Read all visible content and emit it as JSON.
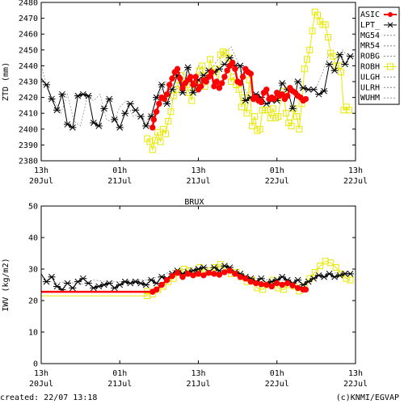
{
  "footer": {
    "created": "created: 22/07 13:18",
    "credit": "(c)KNMI/EGVAP"
  },
  "chart_data": [
    {
      "type": "line",
      "ylabel": "ZTD (mm)",
      "ylim": [
        2380,
        2480
      ],
      "yticks": [
        2380,
        2390,
        2400,
        2410,
        2420,
        2430,
        2440,
        2450,
        2460,
        2470,
        2480
      ],
      "xlim": [
        0,
        48
      ],
      "xticks": [
        {
          "x": 0,
          "line1": "13h",
          "line2": "20Jul"
        },
        {
          "x": 12,
          "line1": "01h",
          "line2": "21Jul"
        },
        {
          "x": 24,
          "line1": "13h",
          "line2": "21Jul"
        },
        {
          "x": 36,
          "line1": "01h",
          "line2": "22Jul"
        },
        {
          "x": 48,
          "line1": "13h",
          "line2": "22Jul"
        }
      ],
      "legend": [
        "ASIC",
        "LPT_",
        "MG54",
        "MR54",
        "ROBG",
        "ROBH",
        "ULGH",
        "ULRH",
        "WUHM"
      ],
      "legend_position": "right",
      "series": [
        {
          "name": "LPT_",
          "x": [
            0,
            0.8,
            1.6,
            2.4,
            3.2,
            4.0,
            4.8,
            5.6,
            6.4,
            7.2,
            8.0,
            8.8,
            9.6,
            10.4,
            11.2,
            12.0,
            12.8,
            13.6,
            14.4,
            15.2,
            16.0,
            16.8,
            17.6,
            18.4,
            19.2,
            20.0,
            20.8,
            21.6,
            22.4,
            23.2,
            24.0,
            24.8,
            25.6,
            26.4,
            27.2,
            28.0,
            28.8,
            29.6,
            30.4,
            31.2,
            32.0,
            32.8,
            33.6,
            34.4,
            35.2,
            36.0,
            36.8,
            37.6,
            38.4,
            39.2,
            40.0,
            40.8,
            41.6,
            42.4,
            43.2,
            44.0,
            44.8,
            45.6,
            46.4,
            47.2
          ],
          "y": [
            2432,
            2428,
            2419,
            2412,
            2422,
            2403,
            2401,
            2421,
            2422,
            2421,
            2404,
            2402,
            2413,
            2419,
            2406,
            2401,
            2410,
            2416,
            2412,
            2408,
            2402,
            2408,
            2420,
            2428,
            2416,
            2425,
            2434,
            2423,
            2439,
            2423,
            2431,
            2434,
            2437,
            2436,
            2438,
            2441,
            2445,
            2440,
            2440,
            2418,
            2420,
            2422,
            2420,
            2416,
            2418,
            2418,
            2429,
            2425,
            2413,
            2430,
            2426,
            2425,
            2425,
            2422,
            2424,
            2441,
            2437,
            2447,
            2441,
            2446
          ]
        },
        {
          "name": "ASIC",
          "x": [
            17.0,
            17.2,
            17.6,
            18.0,
            18.4,
            18.8,
            19.2,
            19.6,
            20.0,
            20.4,
            20.8,
            21.2,
            21.6,
            22.0,
            22.4,
            22.8,
            23.2,
            23.6,
            24.0,
            24.4,
            24.8,
            25.2,
            25.6,
            26.0,
            26.4,
            26.8,
            27.2,
            27.6,
            28.0,
            28.4,
            28.8,
            29.2,
            29.6,
            30.0,
            30.4,
            30.8,
            31.2,
            31.6,
            32.0,
            32.4,
            32.8,
            33.2,
            33.6,
            34.0,
            34.4,
            34.8,
            35.2,
            35.6,
            36.0,
            36.4,
            36.8,
            37.2,
            37.6,
            38.0,
            38.4,
            38.8,
            39.2,
            39.6,
            40.0,
            40.4
          ],
          "y": [
            2401,
            2406,
            2411,
            2416,
            2420,
            2419,
            2422,
            2428,
            2432,
            2436,
            2438,
            2432,
            2426,
            2429,
            2431,
            2433,
            2428,
            2433,
            2425,
            2427,
            2431,
            2430,
            2433,
            2436,
            2427,
            2430,
            2426,
            2429,
            2433,
            2437,
            2440,
            2442,
            2438,
            2430,
            2429,
            2433,
            2438,
            2436,
            2435,
            2419,
            2420,
            2418,
            2417,
            2423,
            2425,
            2419,
            2420,
            2419,
            2423,
            2421,
            2422,
            2419,
            2421,
            2426,
            2424,
            2423,
            2421,
            2420,
            2418,
            2419
          ]
        },
        {
          "name": "ROBH",
          "x": [
            16.2,
            16.6,
            17.0,
            17.4,
            17.8,
            18.2,
            18.6,
            19.0,
            19.4,
            19.8,
            20.2,
            20.6,
            21.0,
            21.4,
            21.8,
            22.2,
            22.6,
            23.0,
            23.4,
            23.8,
            24.2,
            24.6,
            25.0,
            25.4,
            25.8,
            26.2,
            26.6,
            27.0,
            27.4,
            27.8,
            28.2,
            28.6,
            29.0,
            29.4,
            29.8,
            30.2,
            30.6,
            31.0,
            31.4,
            31.8,
            32.2,
            32.6,
            33.0,
            33.4,
            33.8,
            34.2,
            34.6,
            35.0,
            35.4,
            35.8,
            36.2,
            36.6,
            37.0,
            37.4,
            37.8,
            38.2,
            38.6,
            39.0,
            39.4,
            39.8,
            40.2,
            40.6,
            41.0,
            41.4,
            41.8,
            42.2,
            42.6,
            43.0,
            43.4,
            43.8,
            44.2,
            44.6,
            45.0,
            45.4,
            45.8,
            46.2,
            46.6,
            47.0
          ],
          "y": [
            2394,
            2392,
            2387,
            2393,
            2398,
            2392,
            2400,
            2397,
            2405,
            2411,
            2421,
            2425,
            2431,
            2434,
            2429,
            2428,
            2423,
            2418,
            2432,
            2428,
            2437,
            2440,
            2427,
            2434,
            2444,
            2436,
            2438,
            2428,
            2447,
            2449,
            2448,
            2445,
            2430,
            2433,
            2428,
            2425,
            2414,
            2420,
            2410,
            2431,
            2402,
            2408,
            2399,
            2400,
            2412,
            2412,
            2412,
            2407,
            2413,
            2407,
            2408,
            2420,
            2424,
            2410,
            2404,
            2402,
            2413,
            2408,
            2400,
            2416,
            2438,
            2444,
            2450,
            2462,
            2474,
            2472,
            2468,
            2466,
            2466,
            2458,
            2448,
            2446,
            2440,
            2440,
            2436,
            2412,
            2414,
            2412
          ]
        },
        {
          "name": "WUHM",
          "x": [
            0,
            1,
            2,
            3,
            4,
            5,
            6,
            7,
            8,
            9,
            10,
            11,
            12,
            13,
            14,
            15,
            16,
            17,
            18,
            19,
            20,
            21,
            22,
            23,
            24,
            25,
            26,
            27,
            28,
            29,
            30,
            31,
            32,
            33,
            34,
            35,
            36,
            37,
            38,
            39,
            40,
            41,
            42,
            43,
            44,
            45,
            46,
            47
          ],
          "y": [
            2440,
            2425,
            2418,
            2410,
            2422,
            2405,
            2402,
            2420,
            2418,
            2422,
            2406,
            2404,
            2414,
            2418,
            2408,
            2410,
            2404,
            2412,
            2422,
            2430,
            2418,
            2428,
            2438,
            2424,
            2440,
            2430,
            2438,
            2444,
            2448,
            2452,
            2443,
            2426,
            2419,
            2416,
            2424,
            2418,
            2418,
            2430,
            2426,
            2420,
            2428,
            2424,
            2426,
            2436,
            2448,
            2444,
            2450,
            2445
          ]
        }
      ]
    },
    {
      "type": "line",
      "title": "BRUX",
      "ylabel": "IWV (kg/m2)",
      "ylim": [
        0,
        50
      ],
      "yticks": [
        0,
        10,
        20,
        30,
        40,
        50
      ],
      "xlim": [
        0,
        48
      ],
      "xticks": [
        {
          "x": 0,
          "line1": "13h",
          "line2": "20Jul"
        },
        {
          "x": 12,
          "line1": "01h",
          "line2": "21Jul"
        },
        {
          "x": 24,
          "line1": "13h",
          "line2": "21Jul"
        },
        {
          "x": 36,
          "line1": "01h",
          "line2": "22Jul"
        },
        {
          "x": 48,
          "line1": "13h",
          "line2": "22Jul"
        }
      ],
      "series": [
        {
          "name": "ASIC",
          "x": [
            0,
            17.0,
            17.6,
            18.4,
            19.2,
            20.0,
            20.8,
            21.6,
            22.4,
            23.2,
            24.0,
            24.8,
            25.6,
            26.4,
            27.2,
            28.0,
            28.8,
            29.6,
            30.4,
            31.2,
            32.0,
            32.8,
            33.6,
            34.4,
            35.2,
            36.0,
            36.8,
            37.6,
            38.4,
            39.2,
            40.0,
            40.4
          ],
          "y": [
            22.8,
            22.8,
            23.5,
            25.0,
            26.5,
            27.8,
            28.8,
            27.5,
            28.5,
            28.0,
            28.5,
            28.0,
            28.8,
            28.5,
            28.2,
            29.0,
            29.5,
            28.5,
            27.5,
            27.0,
            26.0,
            25.5,
            25.2,
            25.0,
            24.5,
            25.5,
            25.0,
            25.5,
            24.8,
            24.0,
            23.5,
            23.5
          ]
        },
        {
          "name": "LPT_",
          "x": [
            0,
            0.8,
            1.6,
            2.4,
            3.2,
            4.0,
            4.8,
            5.6,
            6.4,
            7.2,
            8.0,
            8.8,
            9.6,
            10.4,
            11.2,
            12.0,
            12.8,
            13.6,
            14.4,
            15.2,
            16.0,
            16.8,
            17.6,
            18.4,
            19.2,
            20.0,
            20.8,
            21.6,
            22.4,
            23.2,
            24.0,
            24.8,
            25.6,
            26.4,
            27.2,
            28.0,
            28.8,
            29.6,
            30.4,
            31.2,
            32.0,
            32.8,
            33.6,
            34.4,
            35.2,
            36.0,
            36.8,
            37.6,
            38.4,
            39.2,
            40.0,
            40.8,
            41.6,
            42.4,
            43.2,
            44.0,
            44.8,
            45.6,
            46.4,
            47.2
          ],
          "y": [
            28.5,
            26.0,
            27.5,
            24.5,
            23.5,
            25.5,
            24.0,
            26.0,
            27.0,
            25.5,
            24.0,
            24.5,
            25.0,
            25.5,
            24.0,
            25.0,
            26.0,
            25.5,
            26.0,
            25.5,
            25.0,
            26.5,
            25.5,
            27.5,
            27.0,
            28.5,
            29.5,
            28.5,
            29.0,
            29.5,
            30.0,
            30.5,
            29.0,
            30.5,
            29.5,
            31.0,
            30.5,
            29.0,
            28.5,
            27.5,
            27.0,
            26.0,
            27.0,
            25.5,
            26.0,
            26.5,
            27.5,
            26.5,
            25.5,
            26.5,
            25.0,
            26.0,
            27.0,
            28.0,
            27.5,
            28.5,
            27.5,
            28.0,
            28.5,
            28.5
          ]
        },
        {
          "name": "ROBH",
          "x": [
            0,
            16.2,
            16.2,
            17.0,
            17.8,
            18.6,
            19.4,
            20.2,
            21.0,
            21.8,
            22.6,
            23.4,
            24.2,
            25.0,
            25.8,
            26.6,
            27.4,
            28.2,
            29.0,
            29.8,
            30.6,
            31.4,
            32.2,
            33.0,
            33.8,
            34.6,
            35.4,
            36.2,
            37.0,
            37.8,
            38.6,
            39.4,
            40.2,
            41.0,
            41.8,
            42.6,
            43.4,
            44.2,
            45.0,
            45.8,
            46.6,
            47.2
          ],
          "y": [
            21.5,
            21.5,
            23.0,
            22.0,
            23.5,
            24.5,
            26.0,
            27.0,
            29.0,
            30.0,
            29.5,
            28.5,
            30.5,
            29.0,
            29.5,
            30.5,
            31.5,
            30.0,
            28.5,
            29.0,
            27.5,
            26.0,
            26.5,
            24.0,
            23.5,
            25.0,
            26.5,
            24.0,
            23.5,
            25.0,
            24.5,
            23.0,
            24.5,
            27.0,
            29.0,
            31.0,
            32.5,
            32.0,
            30.5,
            28.5,
            27.0,
            26.5
          ]
        },
        {
          "name": "WUHM",
          "x": [
            0,
            2,
            4,
            6,
            8,
            10,
            12,
            14,
            16,
            18,
            20,
            22,
            24,
            26,
            28,
            30,
            32,
            34,
            36,
            38,
            40,
            42,
            44,
            46,
            47
          ],
          "y": [
            27.5,
            25.5,
            26.0,
            25.0,
            26.5,
            26.0,
            26.0,
            26.5,
            26.5,
            27.5,
            29.5,
            30.0,
            30.0,
            30.5,
            31.0,
            28.5,
            27.5,
            26.5,
            27.0,
            26.0,
            25.5,
            28.0,
            28.5,
            29.0,
            28.5
          ]
        }
      ]
    }
  ]
}
